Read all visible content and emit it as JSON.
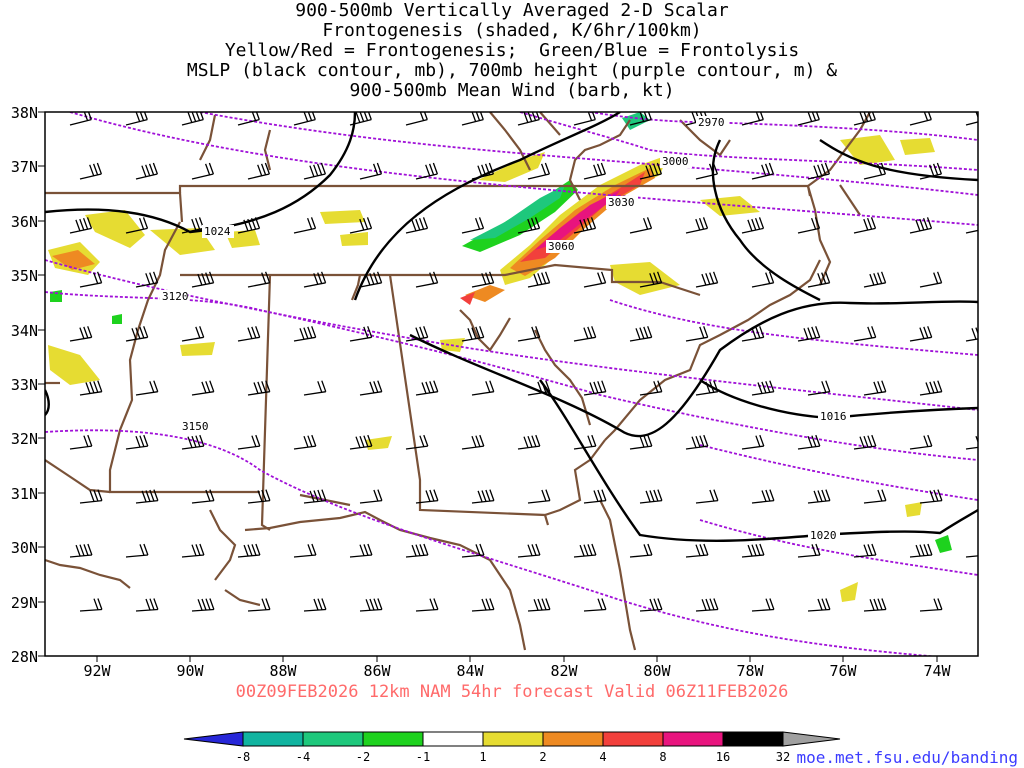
{
  "title_lines": [
    "900-500mb Vertically Averaged 2-D Scalar",
    "Frontogenesis (shaded, K/6hr/100km)",
    "Yellow/Red = Frontogenesis;  Green/Blue = Frontolysis",
    "MSLP (black contour, mb), 700mb height (purple contour, m) &",
    "900-500mb Mean Wind (barb, kt)"
  ],
  "valid_line": "00Z09FEB2026 12km NAM 54hr forecast Valid 06Z11FEB2026",
  "credit": "moe.met.fsu.edu/banding",
  "lat_labels": [
    "38N",
    "37N",
    "36N",
    "35N",
    "34N",
    "33N",
    "32N",
    "31N",
    "30N",
    "29N",
    "28N"
  ],
  "lon_labels": [
    "92W",
    "90W",
    "88W",
    "86W",
    "84W",
    "82W",
    "80W",
    "78W",
    "76W",
    "74W"
  ],
  "mslp_labels": [
    "1024",
    "1016",
    "1020"
  ],
  "height_labels": [
    "2970",
    "3000",
    "3030",
    "3060",
    "3120",
    "3150"
  ],
  "colorbar": {
    "labels": [
      "-8",
      "-4",
      "-2",
      "-1",
      "1",
      "2",
      "4",
      "8",
      "16",
      "32"
    ],
    "colors": [
      "#2727d8",
      "#11b4a0",
      "#1ec87c",
      "#1ed21e",
      "#ffffff",
      "#e6dc32",
      "#ee8a22",
      "#f2403c",
      "#e8147e",
      "#000000",
      "#a0a0a0"
    ]
  },
  "colors": {
    "state_lines": "#7a5238",
    "mslp": "#000000",
    "heights": "#a010d8",
    "valid_text": "#ff6a6a",
    "credit_text": "#3b3bff"
  }
}
